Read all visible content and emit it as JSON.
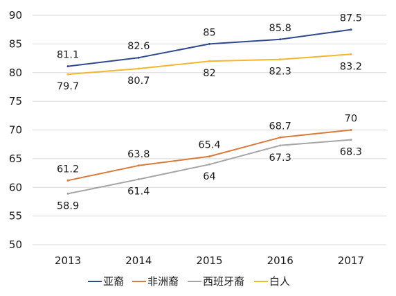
{
  "chart_data": {
    "type": "line",
    "categories": [
      "2013",
      "2014",
      "2015",
      "2016",
      "2017"
    ],
    "ylim": [
      50,
      90
    ],
    "yticks": [
      50,
      55,
      60,
      65,
      70,
      75,
      80,
      85,
      90
    ],
    "grid": true,
    "legend_position": "bottom",
    "series": [
      {
        "name": "亚裔",
        "color": "#2f4a8c",
        "values": [
          81.1,
          82.6,
          85,
          85.8,
          87.5
        ],
        "labels": [
          "81.1",
          "82.6",
          "85",
          "85.8",
          "87.5"
        ],
        "label_position": "above"
      },
      {
        "name": "非洲裔",
        "color": "#d97a3a",
        "values": [
          61.2,
          63.8,
          65.4,
          68.7,
          70
        ],
        "labels": [
          "61.2",
          "63.8",
          "65.4",
          "68.7",
          "70"
        ],
        "label_position": "above"
      },
      {
        "name": "西班牙裔",
        "color": "#a5a5a5",
        "values": [
          58.9,
          61.4,
          64,
          67.3,
          68.3
        ],
        "labels": [
          "58.9",
          "61.4",
          "64",
          "67.3",
          "68.3"
        ],
        "label_position": "below"
      },
      {
        "name": "白人",
        "color": "#f2b72f",
        "values": [
          79.7,
          80.7,
          82,
          82.3,
          83.2
        ],
        "labels": [
          "79.7",
          "80.7",
          "82",
          "82.3",
          "83.2"
        ],
        "label_position": "below"
      }
    ]
  }
}
